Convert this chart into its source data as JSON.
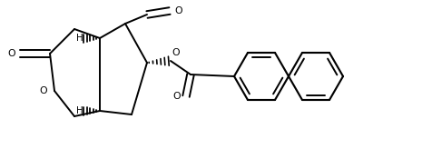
{
  "background_color": "#ffffff",
  "line_color": "#000000",
  "line_width": 1.4,
  "figsize": [
    4.76,
    1.64
  ],
  "dpi": 100,
  "xlim": [
    0,
    4.76
  ],
  "ylim": [
    0,
    1.64
  ]
}
